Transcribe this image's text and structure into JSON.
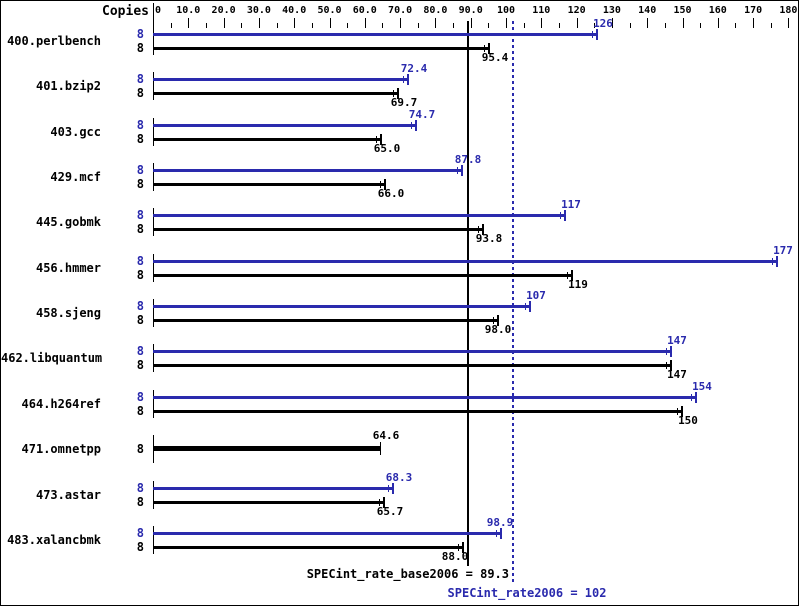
{
  "header": {
    "copies_label": "Copies"
  },
  "colors": {
    "peak_blue": "#2a2aad",
    "base_black": "#000000",
    "background": "#ffffff"
  },
  "axis": {
    "min": 0,
    "max": 180,
    "major_step": 10,
    "minor_step": 5,
    "tick_labels": [
      {
        "value": 0,
        "label": "0"
      },
      {
        "value": 10,
        "label": "10.0"
      },
      {
        "value": 20,
        "label": "20.0"
      },
      {
        "value": 30,
        "label": "30.0"
      },
      {
        "value": 40,
        "label": "40.0"
      },
      {
        "value": 50,
        "label": "50.0"
      },
      {
        "value": 60,
        "label": "60.0"
      },
      {
        "value": 70,
        "label": "70.0"
      },
      {
        "value": 80,
        "label": "80.0"
      },
      {
        "value": 90,
        "label": "90.0"
      },
      {
        "value": 100,
        "label": "100"
      },
      {
        "value": 110,
        "label": "110"
      },
      {
        "value": 120,
        "label": "120"
      },
      {
        "value": 130,
        "label": "130"
      },
      {
        "value": 140,
        "label": "140"
      },
      {
        "value": 150,
        "label": "150"
      },
      {
        "value": 160,
        "label": "160"
      },
      {
        "value": 170,
        "label": "170"
      },
      {
        "value": 180,
        "label": "180"
      }
    ]
  },
  "reference_lines": [
    {
      "name": "base-mean",
      "label": "SPECint_rate_base2006 = 89.3",
      "value": 89.3,
      "style": "solid",
      "color": "#000000"
    },
    {
      "name": "peak-mean",
      "label": "SPECint_rate2006 = 102",
      "value": 102,
      "style": "dotted",
      "color": "#2a2aad"
    }
  ],
  "chart_data": {
    "type": "bar",
    "orientation": "horizontal",
    "title": "",
    "xlabel": "",
    "ylabel": "Copies",
    "xlim": [
      0,
      180
    ],
    "grid": false,
    "categories": [
      "400.perlbench",
      "401.bzip2",
      "403.gcc",
      "429.mcf",
      "445.gobmk",
      "456.hmmer",
      "458.sjeng",
      "462.libquantum",
      "464.h264ref",
      "471.omnetpp",
      "473.astar",
      "483.xalancbmk"
    ],
    "copies": [
      8,
      8,
      8,
      8,
      8,
      8,
      8,
      8,
      8,
      8,
      8,
      8
    ],
    "series": [
      {
        "name": "peak (SPECint_rate2006)",
        "color": "#2a2aad",
        "values": [
          126,
          72.4,
          74.7,
          87.8,
          117,
          177,
          107,
          147,
          154,
          64.6,
          68.3,
          98.9
        ]
      },
      {
        "name": "base (SPECint_rate_base2006)",
        "color": "#000000",
        "values": [
          95.4,
          69.7,
          65.0,
          66.0,
          93.8,
          119,
          98.0,
          147,
          150,
          64.6,
          65.7,
          88.0
        ]
      }
    ]
  },
  "rows": [
    {
      "name": "400.perlbench",
      "copies_label": "8",
      "peak": 126,
      "base": 95.4,
      "peak_label": "126",
      "base_label": "95.4",
      "single": false,
      "peak_dx": 0,
      "base_dx": 0
    },
    {
      "name": "401.bzip2",
      "copies_label": "8",
      "peak": 72.4,
      "base": 69.7,
      "peak_label": "72.4",
      "base_label": "69.7",
      "single": false,
      "peak_dx": 0,
      "base_dx": 0
    },
    {
      "name": "403.gcc",
      "copies_label": "8",
      "peak": 74.7,
      "base": 65.0,
      "peak_label": "74.7",
      "base_label": "65.0",
      "single": false,
      "peak_dx": 0,
      "base_dx": 0
    },
    {
      "name": "429.mcf",
      "copies_label": "8",
      "peak": 87.8,
      "base": 66.0,
      "peak_label": "87.8",
      "base_label": "66.0",
      "single": false,
      "peak_dx": 0,
      "base_dx": 0
    },
    {
      "name": "445.gobmk",
      "copies_label": "8",
      "peak": 117,
      "base": 93.8,
      "peak_label": "117",
      "base_label": "93.8",
      "single": false,
      "peak_dx": 0,
      "base_dx": 0
    },
    {
      "name": "456.hmmer",
      "copies_label": "8",
      "peak": 177,
      "base": 119,
      "peak_label": "177",
      "base_label": "119",
      "single": false,
      "peak_dx": 0,
      "base_dx": 0
    },
    {
      "name": "458.sjeng",
      "copies_label": "8",
      "peak": 107,
      "base": 98.0,
      "peak_label": "107",
      "base_label": "98.0",
      "single": false,
      "peak_dx": 0,
      "base_dx": -6
    },
    {
      "name": "462.libquantum",
      "copies_label": "8",
      "peak": 147,
      "base": 147,
      "peak_label": "147",
      "base_label": "147",
      "single": false,
      "peak_dx": 0,
      "base_dx": 0
    },
    {
      "name": "464.h264ref",
      "copies_label": "8",
      "peak": 154,
      "base": 150,
      "peak_label": "154",
      "base_label": "150",
      "single": false,
      "peak_dx": 0,
      "base_dx": 0
    },
    {
      "name": "471.omnetpp",
      "copies_label": "8",
      "peak": 64.6,
      "base": 64.6,
      "peak_label": "64.6",
      "base_label": "64.6",
      "single": true,
      "peak_dx": 0,
      "base_dx": 0
    },
    {
      "name": "473.astar",
      "copies_label": "8",
      "peak": 68.3,
      "base": 65.7,
      "peak_label": "68.3",
      "base_label": "65.7",
      "single": false,
      "peak_dx": 0,
      "base_dx": 0
    },
    {
      "name": "483.xalancbmk",
      "copies_label": "8",
      "peak": 98.9,
      "base": 88.0,
      "peak_label": "98.9",
      "base_label": "88.0",
      "single": false,
      "peak_dx": -7,
      "base_dx": -14
    }
  ]
}
